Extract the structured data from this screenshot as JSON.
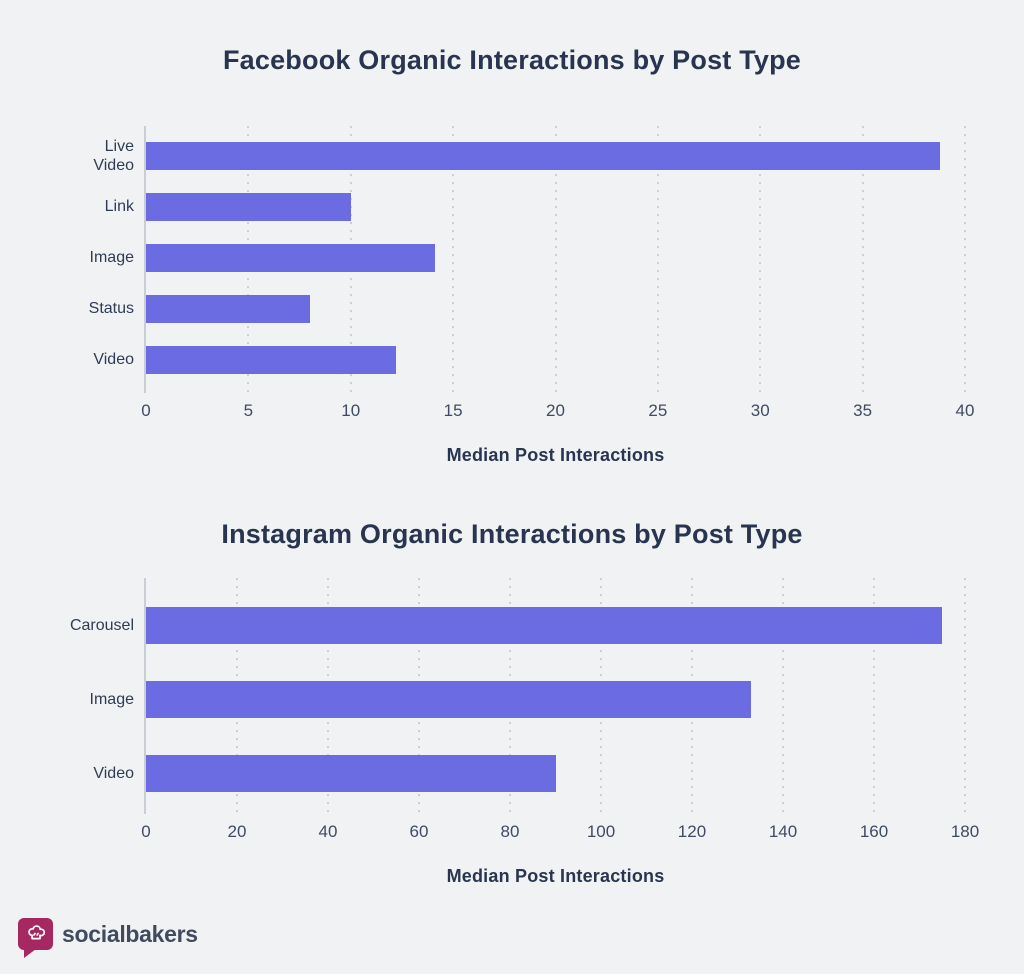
{
  "page": {
    "background_color": "#f1f2f3"
  },
  "colors": {
    "bar": "#6b6ce1",
    "title_text": "#293550",
    "axis_text": "#3e4b63",
    "category_text": "#2f3c55",
    "gridline": "#cbd0d7",
    "axis_line": "#c9ced5",
    "brand_logo": "#a62861",
    "brand_text": "#404b5e"
  },
  "chart_data": [
    {
      "id": "facebook",
      "type": "bar",
      "orientation": "horizontal",
      "title": "Facebook Organic Interactions by Post Type",
      "xlabel": "Median Post Interactions",
      "ylabel": "",
      "categories": [
        "Live\nVideo",
        "Link",
        "Image",
        "Status",
        "Video"
      ],
      "values": [
        38.8,
        10,
        14.1,
        8,
        12.2
      ],
      "xlim": [
        0,
        40
      ],
      "ticks": [
        0,
        5,
        10,
        15,
        20,
        25,
        30,
        35,
        40
      ],
      "grid": "vertical-dotted",
      "legend": "none"
    },
    {
      "id": "instagram",
      "type": "bar",
      "orientation": "horizontal",
      "title": "Instagram Organic Interactions by Post Type",
      "xlabel": "Median Post Interactions",
      "ylabel": "",
      "categories": [
        "Carousel",
        "Image",
        "Video"
      ],
      "values": [
        175,
        133,
        90
      ],
      "xlim": [
        0,
        180
      ],
      "ticks": [
        0,
        20,
        40,
        60,
        80,
        100,
        120,
        140,
        160,
        180
      ],
      "grid": "vertical-dotted",
      "legend": "none"
    }
  ],
  "footer": {
    "brand": "socialbakers",
    "logo_icon": "chef-hat-speech-bubble-icon"
  }
}
